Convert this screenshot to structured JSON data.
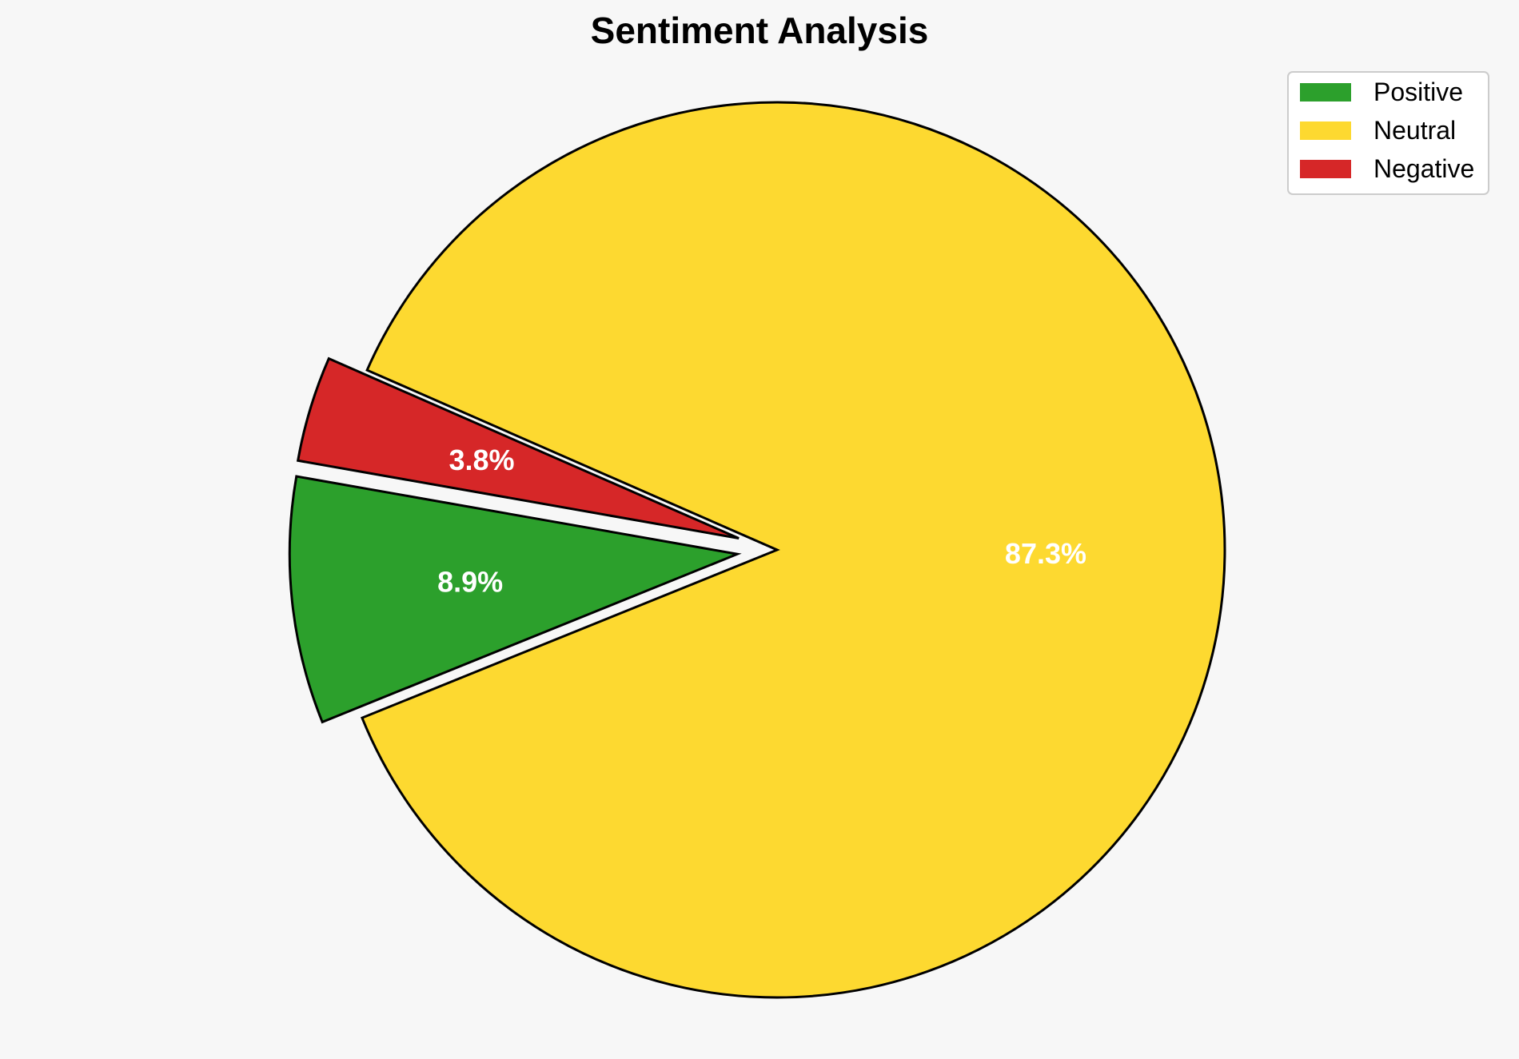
{
  "chart_data": {
    "type": "pie",
    "title": "Sentiment Analysis",
    "categories": [
      "Positive",
      "Neutral",
      "Negative"
    ],
    "values": [
      8.9,
      87.3,
      3.8
    ],
    "labels": [
      "8.9%",
      "87.3%",
      "3.8%"
    ],
    "colors": [
      "#2ca02c",
      "#fdd930",
      "#d62728"
    ],
    "exploded": [
      true,
      false,
      true
    ],
    "legend_position": "top-right",
    "edge_color": "#000000",
    "label_color": "#ffffff",
    "background": "#f7f7f7"
  }
}
